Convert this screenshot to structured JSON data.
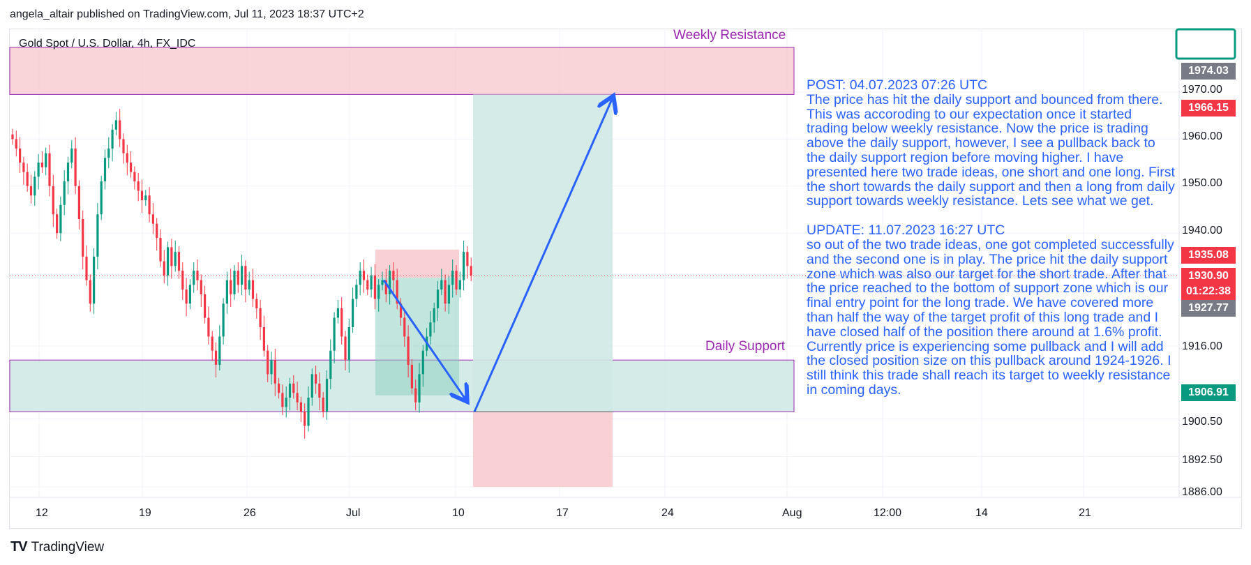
{
  "header": {
    "publisher_line": "angela_altair published on TradingView.com, Jul 11, 2023 18:37 UTC+2"
  },
  "symbol": {
    "title": "Gold Spot / U.S. Dollar, 4h, FX_IDC"
  },
  "zones": {
    "weekly_resistance": {
      "label": "Weekly Resistance",
      "low": 1969.5,
      "high": 1979.5,
      "color": "#f7c6cb"
    },
    "daily_support": {
      "label": "Daily Support",
      "low": 1902.0,
      "high": 1913.0,
      "color": "#cfe9e4"
    }
  },
  "note": {
    "post_title": "POST: 04.07.2023 07:26 UTC",
    "post_body": "The price has hit the daily support and bounced from there. This was accoroding to our expectation once it started trading below weekly resistance. Now the price is trading above the daily support, however, I see a pullback back to the daily support region before moving higher. I have presented here two trade ideas, one short and one long. First the short towards the daily support and then a long from daily support towards weekly resistance. Lets see what we get.",
    "update_title": "UPDATE: 11.07.2023 16:27 UTC",
    "update_body": "so out of the two trade ideas, one got completed successfully and the second one is in play. The price hit the daily support zone which was also our target for the short trade. After that the price reached to the bottom of support zone which is our final entry point for the long trade. We have covered more than half the way of the target profit of this long trade and I have closed half of the position there around at 1.6% profit. Currently price is experiencing some pullback and I will add the closed position size on this pullback around 1924-1926. I still think this trade shall reach its target to weekly resistance in coming days."
  },
  "price_tags": [
    {
      "value": "1974.03",
      "color": "#787b86"
    },
    {
      "value": "1966.15",
      "color": "#f23645"
    },
    {
      "value": "1935.08",
      "color": "#f23645"
    },
    {
      "value": "1930.90",
      "color": "#f23645"
    },
    {
      "value": "01:22:38",
      "color": "#f23645"
    },
    {
      "value": "1927.77",
      "color": "#787b86"
    },
    {
      "value": "1906.91",
      "color": "#089981"
    }
  ],
  "footer": {
    "brand": "TradingView",
    "logo": "TV"
  },
  "chart_data": {
    "type": "candlestick",
    "title": "Gold Spot / U.S. Dollar, 4h, FX_IDC",
    "timeframe": "4h",
    "y_axis": {
      "ticks": [
        1970.0,
        1960.0,
        1950.0,
        1940.0,
        1916.0,
        1900.5,
        1892.5,
        1886.0
      ],
      "tick_labels": [
        "1970.00",
        "1960.00",
        "1950.00",
        "1940.00",
        "1916.00",
        "1900.50",
        "1892.50",
        "1886.00"
      ]
    },
    "x_axis": {
      "tick_labels": [
        "12",
        "19",
        "26",
        "Jul",
        "10",
        "17",
        "24",
        "Aug",
        "12:00",
        "14",
        "21"
      ]
    },
    "current_price": 1930.9,
    "countdown": "01:22:38",
    "closes": [
      1960,
      1958,
      1955,
      1953,
      1950,
      1948,
      1952,
      1955,
      1954,
      1957,
      1950,
      1944,
      1940,
      1946,
      1951,
      1955,
      1958,
      1950,
      1943,
      1935,
      1930,
      1925,
      1935,
      1944,
      1951,
      1956,
      1958,
      1962,
      1964,
      1960,
      1957,
      1955,
      1953,
      1951,
      1949,
      1947,
      1948,
      1944,
      1942,
      1939,
      1934,
      1931,
      1937,
      1933,
      1936,
      1932,
      1928,
      1925,
      1929,
      1932,
      1930,
      1927,
      1922,
      1918,
      1915,
      1912,
      1918,
      1925,
      1930,
      1927,
      1932,
      1929,
      1933,
      1928,
      1930,
      1926,
      1924,
      1920,
      1915,
      1910,
      1913,
      1908,
      1906,
      1903,
      1905,
      1908,
      1906,
      1904,
      1902,
      1899,
      1905,
      1910,
      1908,
      1905,
      1902,
      1909,
      1915,
      1922,
      1924,
      1918,
      1913,
      1920,
      1926,
      1929,
      1932,
      1930,
      1928,
      1931,
      1926,
      1929,
      1930,
      1927,
      1932,
      1930,
      1925,
      1922,
      1918,
      1912,
      1907,
      1904,
      1910,
      1915,
      1918,
      1921,
      1924,
      1928,
      1930,
      1925,
      1929,
      1932,
      1928,
      1930,
      1936,
      1933,
      1931
    ],
    "trade_ideas": [
      {
        "name": "short",
        "entry": 1930.5,
        "stop": 1935.5,
        "target": 1905.5
      },
      {
        "name": "long",
        "entry": 1902.0,
        "stop": 1886.0,
        "target": 1969.5
      }
    ],
    "support_zone": [
      1902.0,
      1913.0
    ],
    "resistance_zone": [
      1969.5,
      1979.5
    ]
  }
}
